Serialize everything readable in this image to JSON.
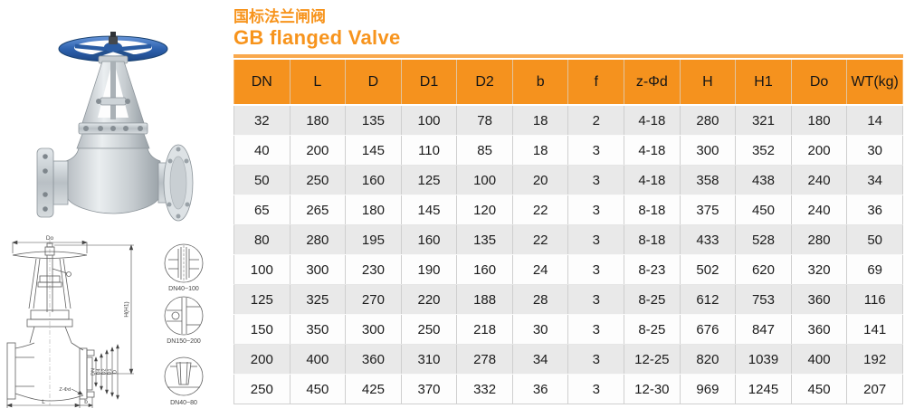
{
  "title": {
    "zh": "国标法兰闸阀",
    "en": "GB flanged Valve"
  },
  "colors": {
    "accent": "#f7941d",
    "table_header_bg": "#f5921e",
    "table_row_alt_bg": "#e9e9e9",
    "handwheel_blue": "#2e62ae"
  },
  "table": {
    "headers": [
      "DN",
      "L",
      "D",
      "D1",
      "D2",
      "b",
      "f",
      "z-Φd",
      "H",
      "H1",
      "Do",
      "WT(kg)"
    ],
    "rows": [
      [
        "32",
        "180",
        "135",
        "100",
        "78",
        "18",
        "2",
        "4-18",
        "280",
        "321",
        "180",
        "14"
      ],
      [
        "40",
        "200",
        "145",
        "110",
        "85",
        "18",
        "3",
        "4-18",
        "300",
        "352",
        "200",
        "30"
      ],
      [
        "50",
        "250",
        "160",
        "125",
        "100",
        "20",
        "3",
        "4-18",
        "358",
        "438",
        "240",
        "34"
      ],
      [
        "65",
        "265",
        "180",
        "145",
        "120",
        "22",
        "3",
        "8-18",
        "375",
        "450",
        "240",
        "36"
      ],
      [
        "80",
        "280",
        "195",
        "160",
        "135",
        "22",
        "3",
        "8-18",
        "433",
        "528",
        "280",
        "50"
      ],
      [
        "100",
        "300",
        "230",
        "190",
        "160",
        "24",
        "3",
        "8-23",
        "502",
        "620",
        "320",
        "69"
      ],
      [
        "125",
        "325",
        "270",
        "220",
        "188",
        "28",
        "3",
        "8-25",
        "612",
        "753",
        "360",
        "116"
      ],
      [
        "150",
        "350",
        "300",
        "250",
        "218",
        "30",
        "3",
        "8-25",
        "676",
        "847",
        "360",
        "141"
      ],
      [
        "200",
        "400",
        "360",
        "310",
        "278",
        "34",
        "3",
        "12-25",
        "820",
        "1039",
        "400",
        "192"
      ],
      [
        "250",
        "450",
        "425",
        "370",
        "332",
        "36",
        "3",
        "12-30",
        "969",
        "1245",
        "450",
        "207"
      ]
    ]
  },
  "drawing": {
    "dim_top": "Do",
    "dim_right": "H(H1)",
    "dim_bottom": "L",
    "dim_width": "b",
    "dim_bolt": "Z-Φd",
    "dim_diameters": [
      "DN",
      "D4",
      "D2",
      "D1",
      "D"
    ],
    "details": [
      {
        "label": "DN40~100"
      },
      {
        "label": "DN150~200"
      },
      {
        "label": "DN40~80"
      }
    ]
  }
}
